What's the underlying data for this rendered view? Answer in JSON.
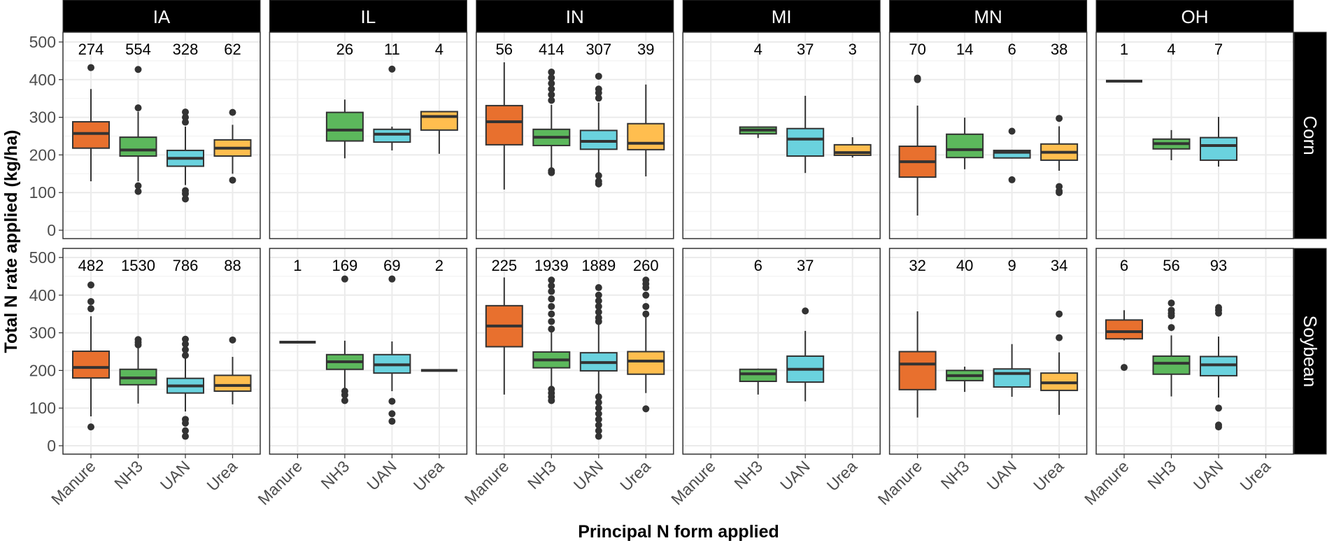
{
  "chart_data": {
    "type": "boxplot",
    "xlabel": "Principal N form applied",
    "ylabel": "Total N rate applied (kg/ha)",
    "ylim": [
      0,
      500
    ],
    "yticks": [
      "0",
      "100",
      "200",
      "300",
      "400",
      "500"
    ],
    "grid": true,
    "categories": [
      "Manure",
      "NH3",
      "UAN",
      "Urea"
    ],
    "colors": {
      "Manure": "#E8702E",
      "NH3": "#5CB85C",
      "UAN": "#6AD2DE",
      "Urea": "#FFBE4F"
    },
    "columns": [
      "IA",
      "IL",
      "IN",
      "MI",
      "MN",
      "OH"
    ],
    "rows": [
      "Corn",
      "Soybean"
    ],
    "stats_order": [
      "whisker_low",
      "q1",
      "median",
      "q3",
      "whisker_high"
    ],
    "panels": [
      {
        "row": "Corn",
        "col": "IA",
        "boxes": [
          {
            "cat": "Manure",
            "n": "274",
            "stats": [
              130,
              218,
              257,
              288,
              375
            ],
            "outliers": [
              432
            ]
          },
          {
            "cat": "NH3",
            "n": "554",
            "stats": [
              130,
              197,
              213,
              247,
              315
            ],
            "outliers": [
              427,
              325,
              118,
              103
            ]
          },
          {
            "cat": "UAN",
            "n": "328",
            "stats": [
              120,
              170,
              191,
              212,
              275
            ],
            "outliers": [
              314,
              300,
              287,
              105,
              97,
              83
            ]
          },
          {
            "cat": "Urea",
            "n": "62",
            "stats": [
              150,
              197,
              218,
              240,
              280
            ],
            "outliers": [
              313,
              133
            ]
          }
        ]
      },
      {
        "row": "Corn",
        "col": "IL",
        "boxes": [
          {
            "cat": "NH3",
            "n": "26",
            "stats": [
              191,
              237,
              266,
              313,
              347
            ],
            "outliers": []
          },
          {
            "cat": "UAN",
            "n": "11",
            "stats": [
              212,
              234,
              255,
              268,
              275
            ],
            "outliers": [
              428
            ]
          },
          {
            "cat": "Urea",
            "n": "4",
            "stats": [
              203,
              266,
              302,
              315,
              315
            ],
            "outliers": []
          }
        ]
      },
      {
        "row": "Corn",
        "col": "IN",
        "boxes": [
          {
            "cat": "Manure",
            "n": "56",
            "stats": [
              108,
              227,
              288,
              331,
              446
            ],
            "outliers": []
          },
          {
            "cat": "NH3",
            "n": "414",
            "stats": [
              165,
              225,
              247,
              268,
              333
            ],
            "outliers": [
              420,
              405,
              390,
              375,
              360,
              345,
              158,
              153
            ]
          },
          {
            "cat": "UAN",
            "n": "307",
            "stats": [
              151,
              215,
              236,
              265,
              339
            ],
            "outliers": [
              409,
              375,
              365,
              351,
              145,
              130,
              123
            ]
          },
          {
            "cat": "Urea",
            "n": "39",
            "stats": [
              143,
              214,
              231,
              283,
              387
            ],
            "outliers": []
          }
        ]
      },
      {
        "row": "Corn",
        "col": "MI",
        "boxes": [
          {
            "cat": "NH3",
            "n": "4",
            "stats": [
              245,
              256,
              266,
              274,
              274
            ],
            "outliers": []
          },
          {
            "cat": "UAN",
            "n": "37",
            "stats": [
              152,
              197,
              242,
              270,
              357
            ],
            "outliers": []
          },
          {
            "cat": "Urea",
            "n": "3",
            "stats": [
              193,
              199,
              206,
              227,
              247
            ],
            "outliers": []
          }
        ]
      },
      {
        "row": "Corn",
        "col": "MN",
        "boxes": [
          {
            "cat": "Manure",
            "n": "70",
            "stats": [
              39,
              141,
              182,
              223,
              331
            ],
            "outliers": [
              404,
              400
            ]
          },
          {
            "cat": "NH3",
            "n": "14",
            "stats": [
              162,
              193,
              214,
              255,
              299
            ],
            "outliers": []
          },
          {
            "cat": "UAN",
            "n": "6",
            "stats": [
              192,
              192,
              207,
              212,
              212
            ],
            "outliers": [
              263,
              134
            ]
          },
          {
            "cat": "Urea",
            "n": "38",
            "stats": [
              158,
              186,
              207,
              229,
              276
            ],
            "outliers": [
              297,
              116,
              104,
              100
            ]
          }
        ]
      },
      {
        "row": "Corn",
        "col": "OH",
        "boxes": [
          {
            "cat": "Manure",
            "n": "1",
            "stats": [
              396,
              396,
              396,
              396,
              396
            ],
            "outliers": []
          },
          {
            "cat": "NH3",
            "n": "4",
            "stats": [
              186,
              216,
              230,
              242,
              266
            ],
            "outliers": []
          },
          {
            "cat": "UAN",
            "n": "7",
            "stats": [
              169,
              186,
              225,
              246,
              301
            ],
            "outliers": []
          }
        ]
      },
      {
        "row": "Soybean",
        "col": "IA",
        "boxes": [
          {
            "cat": "Manure",
            "n": "482",
            "stats": [
              78,
              180,
              208,
              251,
              344
            ],
            "outliers": [
              427,
              383,
              364,
              50
            ]
          },
          {
            "cat": "NH3",
            "n": "1530",
            "stats": [
              112,
              162,
              180,
              203,
              262
            ],
            "outliers": [
              282,
              275,
              268
            ]
          },
          {
            "cat": "UAN",
            "n": "786",
            "stats": [
              91,
              140,
              159,
              179,
              236
            ],
            "outliers": [
              283,
              270,
              255,
              240,
              70,
              60,
              40,
              25
            ]
          },
          {
            "cat": "Urea",
            "n": "88",
            "stats": [
              110,
              145,
              160,
              187,
              236
            ],
            "outliers": [
              281
            ]
          }
        ]
      },
      {
        "row": "Soybean",
        "col": "IL",
        "boxes": [
          {
            "cat": "Manure",
            "n": "1",
            "stats": [
              275,
              275,
              275,
              275,
              275
            ],
            "outliers": []
          },
          {
            "cat": "NH3",
            "n": "169",
            "stats": [
              152,
              203,
              223,
              242,
              279
            ],
            "outliers": [
              443,
              145,
              135,
              120
            ]
          },
          {
            "cat": "UAN",
            "n": "69",
            "stats": [
              145,
              193,
              215,
              242,
              277
            ],
            "outliers": [
              443,
              118,
              85,
              65
            ]
          },
          {
            "cat": "Urea",
            "n": "2",
            "stats": [
              200,
              200,
              200,
              200,
              200
            ],
            "outliers": []
          }
        ]
      },
      {
        "row": "Soybean",
        "col": "IN",
        "boxes": [
          {
            "cat": "Manure",
            "n": "225",
            "stats": [
              136,
              263,
              318,
              372,
              447
            ],
            "outliers": []
          },
          {
            "cat": "NH3",
            "n": "1939",
            "stats": [
              152,
              207,
              228,
              249,
              301
            ],
            "outliers": [
              440,
              425,
              410,
              390,
              370,
              350,
              330,
              310,
              150,
              140,
              130,
              120
            ]
          },
          {
            "cat": "UAN",
            "n": "1889",
            "stats": [
              134,
              199,
              221,
              247,
              326
            ],
            "outliers": [
              420,
              400,
              385,
              370,
              355,
              340,
              330,
              130,
              115,
              100,
              85,
              70,
              55,
              40,
              25
            ]
          },
          {
            "cat": "Urea",
            "n": "260",
            "stats": [
              140,
              190,
              225,
              250,
              344
            ],
            "outliers": [
              440,
              430,
              420,
              400,
              370,
              350,
              98
            ]
          }
        ]
      },
      {
        "row": "Soybean",
        "col": "MI",
        "boxes": [
          {
            "cat": "NH3",
            "n": "6",
            "stats": [
              136,
              171,
              191,
              203,
              205
            ],
            "outliers": []
          },
          {
            "cat": "UAN",
            "n": "37",
            "stats": [
              118,
              169,
              203,
              238,
              305
            ],
            "outliers": [
              358
            ]
          }
        ]
      },
      {
        "row": "Soybean",
        "col": "MN",
        "boxes": [
          {
            "cat": "Manure",
            "n": "32",
            "stats": [
              75,
              149,
              217,
              250,
              357
            ],
            "outliers": []
          },
          {
            "cat": "NH3",
            "n": "40",
            "stats": [
              143,
              173,
              186,
              200,
              210
            ],
            "outliers": []
          },
          {
            "cat": "UAN",
            "n": "9",
            "stats": [
              130,
              156,
              192,
              204,
              270
            ],
            "outliers": []
          },
          {
            "cat": "Urea",
            "n": "34",
            "stats": [
              82,
              147,
              167,
              193,
              248
            ],
            "outliers": [
              350,
              287
            ]
          }
        ]
      },
      {
        "row": "Soybean",
        "col": "OH",
        "boxes": [
          {
            "cat": "Manure",
            "n": "6",
            "stats": [
              280,
              284,
              303,
              334,
              360
            ],
            "outliers": [
              208
            ]
          },
          {
            "cat": "NH3",
            "n": "56",
            "stats": [
              131,
              190,
              219,
              238,
              293
            ],
            "outliers": [
              379,
              360,
              352,
              345,
              314
            ]
          },
          {
            "cat": "UAN",
            "n": "93",
            "stats": [
              128,
              186,
              215,
              237,
              290
            ],
            "outliers": [
              367,
              360,
              352,
              100,
              55,
              50
            ]
          }
        ]
      }
    ]
  }
}
